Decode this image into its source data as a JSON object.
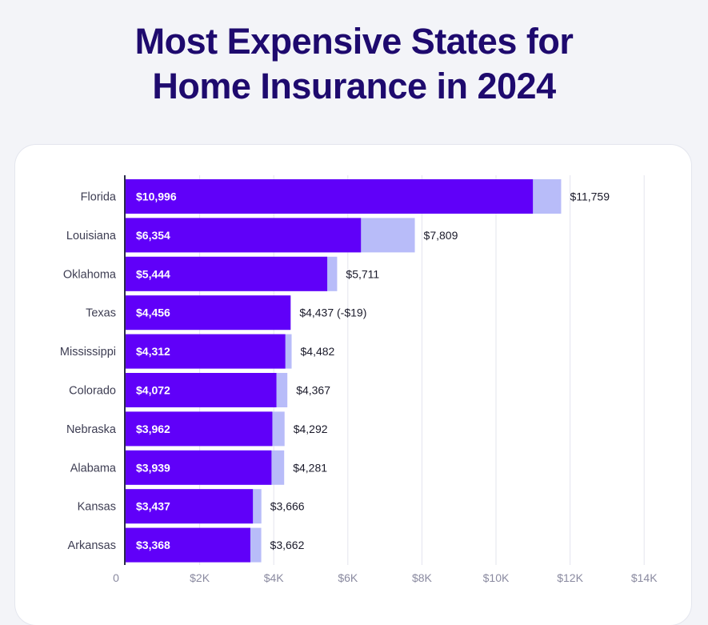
{
  "title": {
    "line1": "Most Expensive States for",
    "line2": "Home Insurance in 2024"
  },
  "colors": {
    "title": "#1e0a6e",
    "primary_bar": "#6000f9",
    "secondary_bar": "#b8bcf9",
    "axis": "#2a2a4a",
    "grid": "#e3e4ee"
  },
  "chart_data": {
    "type": "bar",
    "orientation": "horizontal",
    "categories": [
      "Florida",
      "Louisiana",
      "Oklahoma",
      "Texas",
      "Mississippi",
      "Colorado",
      "Nebraska",
      "Alabama",
      "Kansas",
      "Arkansas"
    ],
    "series": [
      {
        "values": [
          10996,
          6354,
          5444,
          4456,
          4312,
          4072,
          3962,
          3939,
          3437,
          3368
        ],
        "labels": [
          "$10,996",
          "$6,354",
          "$5,444",
          "$4,456",
          "$4,312",
          "$4,072",
          "$3,962",
          "$3,939",
          "$3,437",
          "$3,368"
        ]
      },
      {
        "values": [
          11759,
          7809,
          5711,
          4437,
          4482,
          4367,
          4292,
          4281,
          3666,
          3662
        ],
        "labels": [
          "$11,759",
          "$7,809",
          "$5,711",
          "$4,437 (-$19)",
          "$4,482",
          "$4,367",
          "$4,292",
          "$4,281",
          "$3,666",
          "$3,662"
        ]
      }
    ],
    "xlim": [
      0,
      14000
    ],
    "xticks": [
      0,
      2000,
      4000,
      6000,
      8000,
      10000,
      12000,
      14000
    ],
    "xtick_labels": [
      "0",
      "$2K",
      "$4K",
      "$6K",
      "$8K",
      "$10K",
      "$12K",
      "$14K"
    ],
    "grid": true
  }
}
